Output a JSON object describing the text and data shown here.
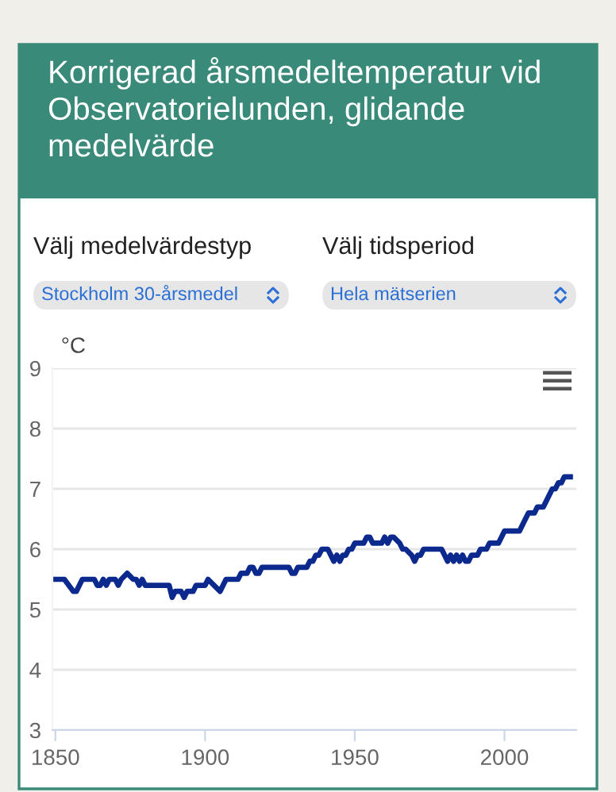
{
  "chart_data": {
    "type": "line",
    "title": "Korrigerad årsmedeltemperatur vid Observatorielunden, glidande medelvärde",
    "ylabel": "°C",
    "annotations": [
      "Välj medelvärdestyp",
      "Stockholm 30-årsmedel",
      "Välj tidsperiod",
      "Hela mätserien"
    ],
    "x": [
      1850,
      1853,
      1856,
      1857,
      1859,
      1863,
      1864,
      1865,
      1866,
      1867,
      1868,
      1870,
      1871,
      1872,
      1874,
      1876,
      1877,
      1878,
      1879,
      1880,
      1888,
      1889,
      1890,
      1892,
      1893,
      1894,
      1896,
      1897,
      1900,
      1901,
      1903,
      1905,
      1907,
      1911,
      1912,
      1914,
      1915,
      1916,
      1917,
      1918,
      1919,
      1928,
      1929,
      1930,
      1931,
      1934,
      1935,
      1936,
      1937,
      1938,
      1939,
      1941,
      1943,
      1944,
      1945,
      1946,
      1947,
      1948,
      1949,
      1950,
      1953,
      1954,
      1955,
      1956,
      1959,
      1960,
      1961,
      1962,
      1963,
      1965,
      1966,
      1967,
      1969,
      1970,
      1971,
      1972,
      1973,
      1979,
      1980,
      1981,
      1982,
      1983,
      1984,
      1985,
      1986,
      1987,
      1988,
      1989,
      1991,
      1992,
      1994,
      1995,
      1998,
      2000,
      2005,
      2007,
      2008,
      2010,
      2011,
      2013,
      2015,
      2016,
      2017,
      2018,
      2019,
      2020,
      2022
    ],
    "series": [
      {
        "color": "#0c2a8e",
        "values": [
          5.5,
          5.5,
          5.3,
          5.3,
          5.5,
          5.5,
          5.4,
          5.4,
          5.5,
          5.4,
          5.5,
          5.5,
          5.4,
          5.5,
          5.6,
          5.5,
          5.5,
          5.4,
          5.5,
          5.4,
          5.4,
          5.2,
          5.3,
          5.3,
          5.2,
          5.3,
          5.3,
          5.4,
          5.4,
          5.5,
          5.4,
          5.3,
          5.5,
          5.5,
          5.6,
          5.6,
          5.7,
          5.7,
          5.6,
          5.6,
          5.7,
          5.7,
          5.6,
          5.6,
          5.7,
          5.7,
          5.8,
          5.8,
          5.9,
          5.9,
          6.0,
          6.0,
          5.8,
          5.9,
          5.8,
          5.9,
          5.9,
          6.0,
          6.0,
          6.1,
          6.1,
          6.2,
          6.2,
          6.1,
          6.1,
          6.2,
          6.1,
          6.2,
          6.2,
          6.1,
          6.0,
          6.0,
          5.9,
          5.8,
          5.9,
          5.9,
          6.0,
          6.0,
          5.9,
          5.8,
          5.9,
          5.8,
          5.9,
          5.8,
          5.9,
          5.8,
          5.8,
          5.9,
          5.9,
          6.0,
          6.0,
          6.1,
          6.1,
          6.3,
          6.3,
          6.5,
          6.6,
          6.6,
          6.7,
          6.7,
          6.9,
          7.0,
          7.0,
          7.1,
          7.1,
          7.2,
          7.2
        ]
      }
    ],
    "xlim": [
      1849,
      2024
    ],
    "xticks": [
      1850,
      1900,
      1950,
      2000
    ],
    "ylim": [
      3,
      9
    ],
    "yticks": [
      3,
      4,
      5,
      6,
      7,
      8,
      9
    ],
    "grid": "y",
    "legend": false,
    "marker": "none",
    "line_style": "solid"
  }
}
